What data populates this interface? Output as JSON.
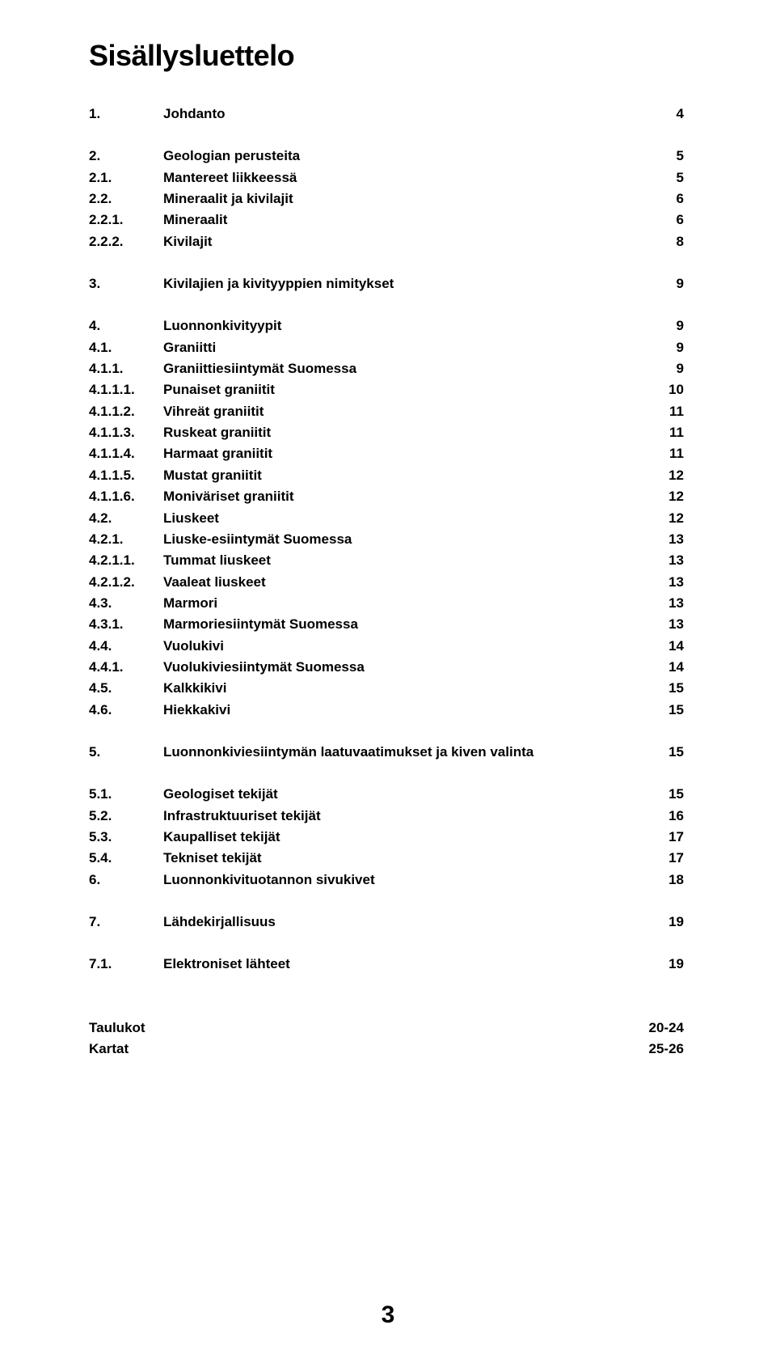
{
  "title": "Sisällysluettelo",
  "page_number": "3",
  "colors": {
    "text": "#000000",
    "background": "#ffffff"
  },
  "toc": [
    {
      "num": "1.",
      "label": "Johdanto",
      "page": "4",
      "group_start": true
    },
    {
      "num": "2.",
      "label": "Geologian perusteita",
      "page": "5",
      "group_start": true
    },
    {
      "num": "2.1.",
      "label": "Mantereet liikkeessä",
      "page": "5"
    },
    {
      "num": "2.2.",
      "label": "Mineraalit ja kivilajit",
      "page": "6"
    },
    {
      "num": "2.2.1.",
      "label": "Mineraalit",
      "page": "6"
    },
    {
      "num": "2.2.2.",
      "label": "Kivilajit",
      "page": "8"
    },
    {
      "num": "3.",
      "label": "Kivilajien ja kivityyppien nimitykset",
      "page": "9",
      "group_start": true
    },
    {
      "num": "4.",
      "label": "Luonnonkivityypit",
      "page": "9",
      "group_start": true
    },
    {
      "num": "4.1.",
      "label": "Graniitti",
      "page": "9"
    },
    {
      "num": "4.1.1.",
      "label": "Graniittiesiintymät Suomessa",
      "page": "9"
    },
    {
      "num": "4.1.1.1.",
      "label": "Punaiset graniitit",
      "page": "10"
    },
    {
      "num": "4.1.1.2.",
      "label": "Vihreät graniitit",
      "page": "11"
    },
    {
      "num": "4.1.1.3.",
      "label": "Ruskeat graniitit",
      "page": "11"
    },
    {
      "num": "4.1.1.4.",
      "label": "Harmaat graniitit",
      "page": "11"
    },
    {
      "num": "4.1.1.5.",
      "label": "Mustat graniitit",
      "page": "12"
    },
    {
      "num": "4.1.1.6.",
      "label": "Moniväriset graniitit",
      "page": "12"
    },
    {
      "num": "4.2.",
      "label": "Liuskeet",
      "page": "12"
    },
    {
      "num": "4.2.1.",
      "label": "Liuske-esiintymät Suomessa",
      "page": "13"
    },
    {
      "num": "4.2.1.1.",
      "label": "Tummat liuskeet",
      "page": "13"
    },
    {
      "num": "4.2.1.2.",
      "label": "Vaaleat liuskeet",
      "page": "13"
    },
    {
      "num": "4.3.",
      "label": "Marmori",
      "page": "13"
    },
    {
      "num": "4.3.1.",
      "label": "Marmoriesiintymät Suomessa",
      "page": "13"
    },
    {
      "num": "4.4.",
      "label": "Vuolukivi",
      "page": "14"
    },
    {
      "num": "4.4.1.",
      "label": "Vuolukiviesiintymät Suomessa",
      "page": "14"
    },
    {
      "num": "4.5.",
      "label": "Kalkkikivi",
      "page": "15"
    },
    {
      "num": "4.6.",
      "label": "Hiekkakivi",
      "page": "15"
    },
    {
      "num": "5.",
      "label": "Luonnonkiviesiintymän laatuvaatimukset ja kiven valinta",
      "page": "15",
      "group_start": true
    },
    {
      "num": "5.1.",
      "label": "Geologiset tekijät",
      "page": "15",
      "group_start": true
    },
    {
      "num": "5.2.",
      "label": "Infrastruktuuriset tekijät",
      "page": "16"
    },
    {
      "num": "5.3.",
      "label": "Kaupalliset tekijät",
      "page": "17"
    },
    {
      "num": "5.4.",
      "label": "Tekniset tekijät",
      "page": "17"
    },
    {
      "num": "6.",
      "label": "Luonnonkivituotannon sivukivet",
      "page": "18"
    },
    {
      "num": "7.",
      "label": "Lähdekirjallisuus",
      "page": "19",
      "group_start": true
    },
    {
      "num": "7.1.",
      "label": "Elektroniset lähteet",
      "page": "19",
      "group_start": true
    }
  ],
  "back_matter": [
    {
      "label": "Taulukot",
      "page": "20-24"
    },
    {
      "label": "Kartat",
      "page": "25-26"
    }
  ]
}
